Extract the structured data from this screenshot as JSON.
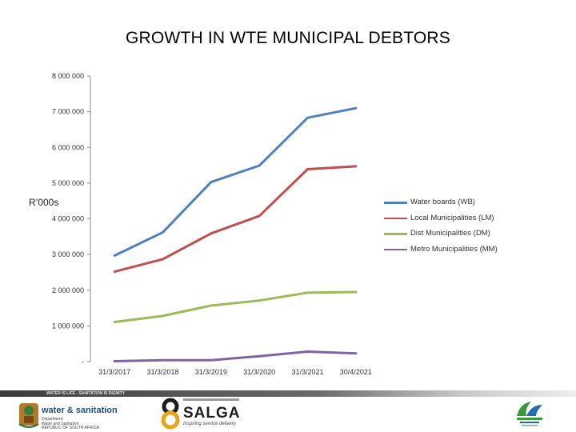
{
  "chart_data": {
    "type": "line",
    "title": "GROWTH IN WTE MUNICIPAL DEBTORS",
    "ylabel": "R’000s",
    "categories": [
      "31/3/2017",
      "31/3/2018",
      "31/3/2019",
      "31/3/2020",
      "31/3/2021",
      "30/4/2021"
    ],
    "ylim": [
      0,
      8000000
    ],
    "yticks": [
      0,
      1000000,
      2000000,
      3000000,
      4000000,
      5000000,
      6000000,
      7000000,
      8000000
    ],
    "ytick_labels": [
      "-",
      "1 000 000",
      "2 000 000",
      "3 000 000",
      "4 000 000",
      "5 000 000",
      "6 000 000",
      "7 000 000",
      "8 000 000"
    ],
    "grid": false,
    "legend_position": "right",
    "series": [
      {
        "name": "Water boards (WB)",
        "color": "#4f81bd",
        "values": [
          2970000,
          3620000,
          5030000,
          5490000,
          6830000,
          7100000
        ]
      },
      {
        "name": "Local Municipalities (LM)",
        "color": "#c0504d",
        "values": [
          2520000,
          2870000,
          3590000,
          4080000,
          5390000,
          5470000
        ]
      },
      {
        "name": "Dist Municipalities (DM)",
        "color": "#9bbb59",
        "values": [
          1110000,
          1280000,
          1570000,
          1710000,
          1930000,
          1950000
        ]
      },
      {
        "name": "Metro Municipalities (MM)",
        "color": "#8064a2",
        "values": [
          10000,
          40000,
          40000,
          150000,
          280000,
          230000
        ]
      }
    ]
  },
  "footer": {
    "tagline": "WATER IS LIFE - SANITATION IS DIGNITY",
    "dws_name": "water & sanitation",
    "dws_sub": "Department:\nWater and Sanitation\nREPUBLIC OF SOUTH AFRICA",
    "salga_word": "SALGA",
    "salga_tag": "Inspiring service delivery",
    "icons": [
      "coat-of-arms",
      "salga-logo",
      "ndp-logo"
    ]
  }
}
